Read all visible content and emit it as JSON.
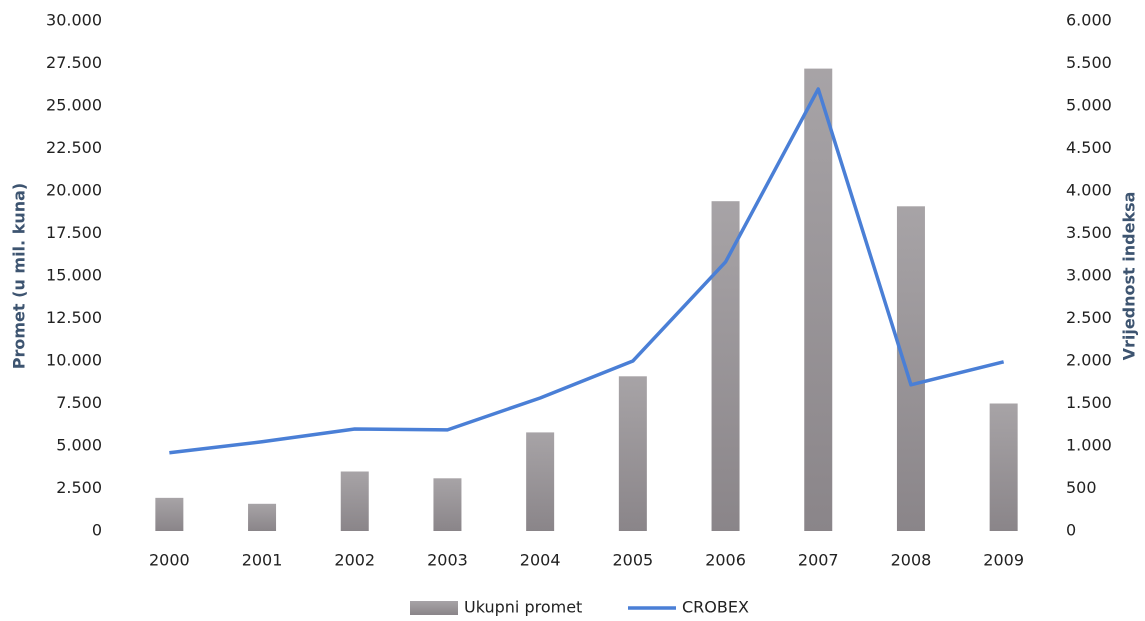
{
  "chart_data": {
    "type": "bar_line",
    "y_label": "Promet (u mil. kuna)",
    "y2_label": "Vrijednost indeksa",
    "categories": [
      "2000",
      "2001",
      "2002",
      "2003",
      "2004",
      "2005",
      "2006",
      "2007",
      "2008",
      "2009"
    ],
    "series": [
      {
        "name": "Ukupni promet",
        "type": "bar",
        "color": "#8a8589",
        "values": [
          1950,
          1600,
          3500,
          3100,
          5800,
          9100,
          19400,
          27200,
          19100,
          7500
        ]
      },
      {
        "name": "CROBEX",
        "type": "line",
        "axis": "y2",
        "color": "#4a7fd6",
        "values": [
          920,
          1050,
          1200,
          1190,
          1565,
          2000,
          3165,
          5200,
          1720,
          1990
        ]
      }
    ],
    "ylim": [
      0,
      30000
    ],
    "yticks": [
      0,
      {
        "value": 2500,
        "label": "2.500"
      },
      {
        "value": 5000,
        "label": "5.000"
      },
      {
        "value": 7500,
        "label": "7.500"
      },
      {
        "value": 10000,
        "label": "10.000"
      },
      {
        "value": 12500,
        "label": "12.500"
      },
      {
        "value": 15000,
        "label": "15.000"
      },
      {
        "value": 17500,
        "label": "17.500"
      },
      {
        "value": 20000,
        "label": "20.000"
      },
      {
        "value": 22500,
        "label": "22.500"
      },
      {
        "value": 25000,
        "label": "25.000"
      },
      {
        "value": 27500,
        "label": "27.500"
      },
      {
        "value": 30000,
        "label": "30.000"
      }
    ],
    "y2lim": [
      0,
      6000
    ],
    "y2ticks": [
      0,
      500,
      {
        "value": 1000,
        "label": "1.000"
      },
      {
        "value": 1500,
        "label": "1.500"
      },
      {
        "value": 2000,
        "label": "2.000"
      },
      {
        "value": 2500,
        "label": "2.500"
      },
      {
        "value": 3000,
        "label": "3.000"
      },
      {
        "value": 3500,
        "label": "3.500"
      },
      {
        "value": 4000,
        "label": "4.000"
      },
      {
        "value": 4500,
        "label": "4.500"
      },
      {
        "value": 5000,
        "label": "5.000"
      },
      {
        "value": 5500,
        "label": "5.500"
      },
      {
        "value": 6000,
        "label": "6.000"
      }
    ],
    "grid": false,
    "legend": "bottom"
  }
}
